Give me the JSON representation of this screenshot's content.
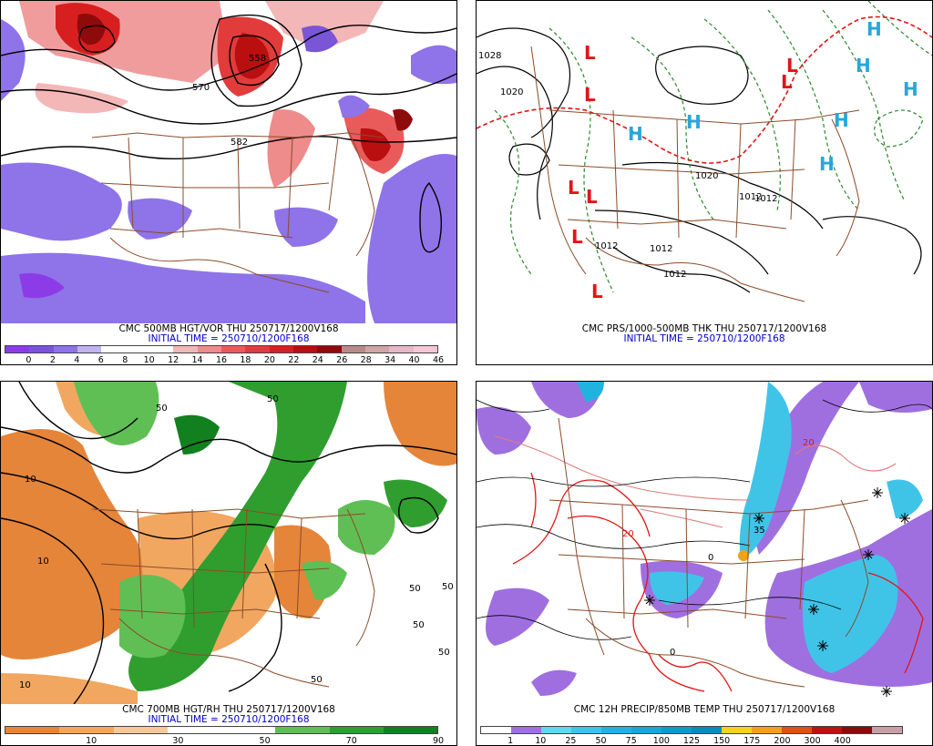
{
  "panels": {
    "vort": {
      "title": "CMC 500MB HGT/VOR THU 250717/1200V168",
      "init": "INITIAL TIME = 250710/1200F168",
      "contour_labels": [
        "570",
        "558",
        "582"
      ],
      "scale_colors": [
        "#8c3ce6",
        "#7a55d6",
        "#8f73e8",
        "#c0b3f2",
        "#ffffff",
        "#ffffff",
        "#ffffff",
        "#f3b7b7",
        "#ee8b8b",
        "#e95b5b",
        "#e23b3b",
        "#d81f1f",
        "#b90f0f",
        "#8e0b0b",
        "#b88a8a",
        "#cfa6a6",
        "#e6b7c6",
        "#f7c6d6"
      ],
      "scale_ticks": [
        "0",
        "2",
        "4",
        "6",
        "8",
        "10",
        "12",
        "14",
        "16",
        "18",
        "20",
        "22",
        "24",
        "26",
        "28",
        "34",
        "40",
        "46"
      ]
    },
    "pressure": {
      "title": "CMC PRS/1000-500MB THK THU 250717/1200V168",
      "init": "INITIAL TIME = 250710/1200F168",
      "contour_labels": [
        "1028",
        "1020",
        "1020",
        "1012",
        "1012",
        "1012",
        "1012",
        "1012"
      ],
      "low_label": "L",
      "high_label": "H"
    },
    "rh": {
      "title": "CMC 700MB HGT/RH THU 250717/1200V168",
      "init": "INITIAL TIME = 250710/1200F168",
      "contour_labels": [
        "50",
        "50",
        "50",
        "50",
        "50",
        "10",
        "10",
        "10",
        "50",
        "50"
      ],
      "scale_colors": [
        "#e5853a",
        "#f1a760",
        "#f6c99a",
        "#ffffff",
        "#ffffff",
        "#5fbf55",
        "#2f9e2f",
        "#12801e"
      ],
      "scale_ticks": [
        "10",
        "30",
        "50",
        "70",
        "90"
      ]
    },
    "precip": {
      "title": "CMC 12H PRECIP/850MB TEMP THU 250717/1200V168",
      "init": "",
      "contour_labels": [
        "20",
        "20",
        "35",
        "0",
        "0"
      ],
      "scale_colors": [
        "#ffffff",
        "#9f6fe0",
        "#5fd8f0",
        "#3fc4e8",
        "#21b3df",
        "#15a8d6",
        "#0f9bc8",
        "#0a8cb6",
        "#f4d21e",
        "#f0a21a",
        "#e05016",
        "#c01010",
        "#8b0a0a",
        "#c8a0a8"
      ],
      "scale_ticks": [
        "1",
        "10",
        "25",
        "50",
        "75",
        "100",
        "125",
        "150",
        "175",
        "200",
        "300",
        "400"
      ]
    }
  }
}
